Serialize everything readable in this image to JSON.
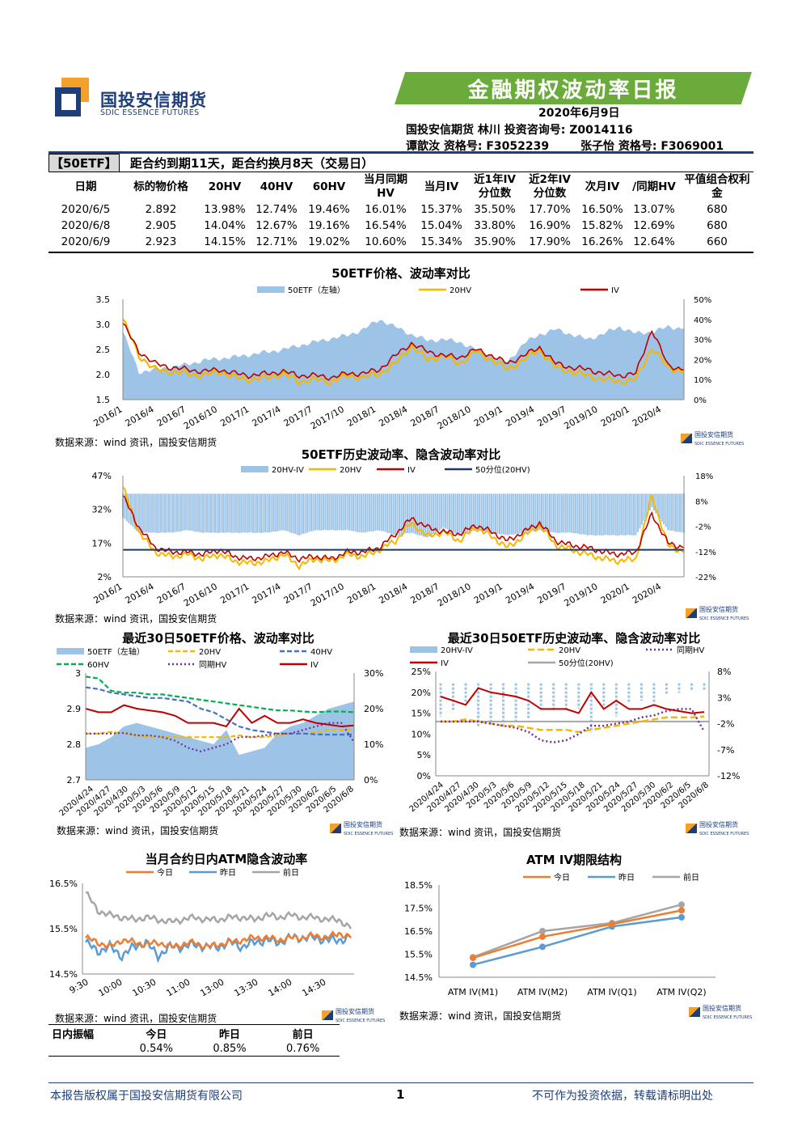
{
  "header": {
    "company_cn": "国投安信期货",
    "company_en": "SDIC ESSENCE FUTURES",
    "report_title": "金融期权波动率日报",
    "date": "2020年6月9日",
    "analyst_line1": "国投安信期货 林川 投资咨询号: Z0014116",
    "analyst_line2a": "谭歆汝 资格号: F3052239",
    "analyst_line2b": "张子怡 资格号: F3069001",
    "brand_blue": "#1c3f7a",
    "brand_green": "#6aab3b",
    "brand_orange": "#f3a12a"
  },
  "summary": {
    "tag": "【50ETF】",
    "note": "距合约到期11天，距合约换月8天（交易日）",
    "columns": [
      "日期",
      "标的物价格",
      "20HV",
      "40HV",
      "60HV",
      "当月同期HV",
      "当月IV",
      "近1年IV分位数",
      "近2年IV分位数",
      "次月IV",
      "/同期HV",
      "平值组合权利金"
    ],
    "rows": [
      [
        "2020/6/5",
        "2.892",
        "13.98%",
        "12.74%",
        "19.46%",
        "16.01%",
        "15.37%",
        "35.50%",
        "17.70%",
        "16.50%",
        "13.07%",
        "680"
      ],
      [
        "2020/6/8",
        "2.905",
        "14.04%",
        "12.67%",
        "19.16%",
        "16.54%",
        "15.04%",
        "33.80%",
        "16.90%",
        "15.82%",
        "12.69%",
        "680"
      ],
      [
        "2020/6/9",
        "2.923",
        "14.15%",
        "12.71%",
        "19.02%",
        "10.60%",
        "15.34%",
        "35.90%",
        "17.90%",
        "16.26%",
        "12.64%",
        "660"
      ]
    ]
  },
  "source_text": "数据来源：wind 资讯，国投安信期货",
  "mini_logo_cn": "国投安信期货",
  "mini_logo_en": "SDIC ESSENCE FUTURES",
  "chart_data": [
    {
      "id": "c1",
      "type": "area+line",
      "title": "50ETF价格、波动率对比",
      "legend": [
        "50ETF（左轴）",
        "20HV",
        "IV"
      ],
      "colors": [
        "#9dc3e6",
        "#f5b800",
        "#c00000"
      ],
      "x_ticks": [
        "2016/1",
        "2016/4",
        "2016/7",
        "2016/10",
        "2017/1",
        "2017/4",
        "2017/7",
        "2017/10",
        "2018/1",
        "2018/4",
        "2018/7",
        "2018/10",
        "2019/1",
        "2019/4",
        "2019/7",
        "2019/10",
        "2020/1",
        "2020/4"
      ],
      "y_left_ticks": [
        "3.5",
        "3.0",
        "2.5",
        "2.0",
        "1.5"
      ],
      "y_left_range": [
        1.5,
        3.5
      ],
      "y_right_ticks": [
        "50%",
        "40%",
        "30%",
        "20%",
        "10%",
        "0%"
      ],
      "y_right_range": [
        0,
        50
      ],
      "price": [
        2.85,
        2.05,
        2.1,
        2.15,
        2.2,
        2.28,
        2.32,
        2.35,
        2.4,
        2.45,
        2.5,
        2.58,
        2.65,
        2.72,
        2.78,
        2.9,
        3.1,
        2.95,
        2.8,
        2.68,
        2.7,
        2.65,
        2.5,
        2.38,
        2.25,
        2.62,
        2.8,
        2.9,
        2.8,
        2.7,
        2.82,
        2.95,
        2.82,
        2.85,
        2.95,
        2.92
      ],
      "hv20": [
        40,
        22,
        15,
        14,
        13,
        12,
        14,
        11,
        10,
        11,
        13,
        9,
        10,
        9,
        12,
        11,
        13,
        18,
        27,
        20,
        22,
        18,
        24,
        20,
        15,
        20,
        25,
        16,
        14,
        12,
        10,
        9,
        10,
        26,
        16,
        14
      ],
      "iv": [
        38,
        24,
        18,
        16,
        15,
        14,
        15,
        13,
        12,
        13,
        14,
        12,
        12,
        11,
        13,
        13,
        15,
        22,
        28,
        24,
        22,
        21,
        25,
        22,
        18,
        22,
        26,
        18,
        16,
        15,
        13,
        12,
        13,
        35,
        17,
        15
      ]
    },
    {
      "id": "c2",
      "type": "bar+line",
      "title": "50ETF历史波动率、隐含波动率对比",
      "legend": [
        "20HV-IV",
        "20HV",
        "IV",
        "50分位(20HV)"
      ],
      "colors": [
        "#9dc3e6",
        "#f5b800",
        "#c00000",
        "#1f3864"
      ],
      "x_ticks": [
        "2016/1",
        "2016/4",
        "2016/7",
        "2016/10",
        "2017/1",
        "2017/4",
        "2017/7",
        "2017/10",
        "2018/1",
        "2018/4",
        "2018/7",
        "2018/10",
        "2019/1",
        "2019/4",
        "2019/7",
        "2019/10",
        "2020/1",
        "2020/4"
      ],
      "y_left_ticks": [
        "47%",
        "32%",
        "17%",
        "2%"
      ],
      "y_left_range": [
        2,
        47
      ],
      "y_right_ticks": [
        "18%",
        "8%",
        "-2%",
        "-12%",
        "-22%"
      ],
      "y_right_range": [
        -22,
        18
      ],
      "median_20hv": 14,
      "hv20": [
        42,
        22,
        13,
        11,
        12,
        10,
        12,
        9,
        8,
        9,
        12,
        7,
        10,
        9,
        12,
        11,
        14,
        18,
        26,
        20,
        22,
        18,
        24,
        20,
        15,
        20,
        25,
        16,
        14,
        12,
        10,
        9,
        10,
        38,
        16,
        13
      ],
      "iv": [
        38,
        24,
        15,
        13,
        13,
        12,
        14,
        11,
        10,
        11,
        13,
        10,
        11,
        10,
        13,
        13,
        15,
        21,
        28,
        24,
        22,
        21,
        25,
        22,
        18,
        22,
        26,
        18,
        16,
        15,
        13,
        12,
        13,
        30,
        17,
        15
      ]
    },
    {
      "id": "c3",
      "type": "area+line",
      "title": "最近30日50ETF价格、波动率对比",
      "legend": [
        "50ETF（左轴）",
        "20HV",
        "40HV",
        "60HV",
        "同期HV",
        "IV"
      ],
      "colors": [
        "#9dc3e6",
        "#f5b800",
        "#4472c4",
        "#00b050",
        "#7030a0",
        "#c00000"
      ],
      "x_ticks": [
        "2020/4/24",
        "2020/4/27",
        "2020/4/30",
        "2020/5/3",
        "2020/5/6",
        "2020/5/9",
        "2020/5/12",
        "2020/5/15",
        "2020/5/18",
        "2020/5/21",
        "2020/5/24",
        "2020/5/27",
        "2020/5/30",
        "2020/6/2",
        "2020/6/5",
        "2020/6/8"
      ],
      "y_left_ticks": [
        "3",
        "2.9",
        "2.8",
        "2.7"
      ],
      "y_left_range": [
        2.7,
        3.0
      ],
      "y_right_ticks": [
        "30%",
        "20%",
        "10%",
        "0%"
      ],
      "y_right_range": [
        0,
        30
      ],
      "price": [
        2.79,
        2.8,
        2.82,
        2.85,
        2.86,
        2.85,
        2.84,
        2.83,
        2.82,
        2.81,
        2.8,
        2.84,
        2.77,
        2.78,
        2.79,
        2.83,
        2.85,
        2.86,
        2.88,
        2.9,
        2.91,
        2.92
      ],
      "hv20": [
        13,
        13,
        13.5,
        13,
        12.5,
        12,
        12,
        12,
        12,
        12,
        12,
        12,
        12.5,
        12,
        12,
        12.5,
        13,
        13,
        13.5,
        14,
        14,
        14.2
      ],
      "hv40": [
        26,
        25.5,
        24.5,
        24,
        23.5,
        23,
        23,
        22.5,
        22,
        20,
        19,
        17,
        15,
        14,
        13.5,
        13,
        13,
        13,
        12.8,
        12.7,
        12.7,
        12.7
      ],
      "hv60": [
        29,
        28.5,
        25,
        24.5,
        24.5,
        24,
        24,
        23.5,
        23,
        22.5,
        22,
        21.5,
        21,
        20.5,
        20,
        19.5,
        19.5,
        19.2,
        19,
        19.2,
        19.2,
        19
      ],
      "hv_same": [
        13,
        13,
        13,
        13.2,
        12.5,
        12.5,
        12,
        11,
        9,
        8,
        9,
        10,
        12,
        12,
        12.5,
        13,
        13,
        14,
        15,
        16,
        16,
        10.6
      ],
      "iv": [
        20,
        19,
        19,
        21,
        20,
        19.5,
        19,
        18,
        16,
        16,
        16,
        15,
        20,
        16,
        18,
        16,
        16,
        17,
        16,
        15.5,
        15,
        15.3
      ]
    },
    {
      "id": "c4",
      "type": "bar+line",
      "title": "最近30日50ETF历史波动率、隐含波动率对比",
      "legend": [
        "20HV-IV",
        "20HV",
        "同期HV",
        "IV",
        "50分位(20HV)"
      ],
      "colors": [
        "#9dc3e6",
        "#f5b800",
        "#7030a0",
        "#c00000",
        "#a6a6a6"
      ],
      "x_ticks": [
        "2020/4/24",
        "2020/4/27",
        "2020/4/30",
        "2020/5/3",
        "2020/5/6",
        "2020/5/9",
        "2020/5/12",
        "2020/5/15",
        "2020/5/18",
        "2020/5/21",
        "2020/5/24",
        "2020/5/27",
        "2020/5/30",
        "2020/6/2",
        "2020/6/5",
        "2020/6/8"
      ],
      "y_left_ticks": [
        "25%",
        "20%",
        "15%",
        "10%",
        "5%",
        "0%"
      ],
      "y_left_range": [
        0,
        25
      ],
      "y_right_ticks": [
        "8%",
        "3%",
        "-2%",
        "-7%",
        "-12%"
      ],
      "y_right_range": [
        -12,
        8
      ],
      "median_20hv": 13,
      "hv20": [
        13,
        13,
        13.5,
        13,
        12.5,
        12,
        12,
        11.5,
        11,
        11,
        11,
        10.5,
        11,
        11.5,
        12,
        12.5,
        13,
        13.5,
        14,
        14,
        14,
        14.2
      ],
      "hv_same": [
        13,
        13,
        13,
        13,
        12.5,
        12,
        11.5,
        10.5,
        8.5,
        8,
        8.5,
        10,
        12,
        12,
        12.5,
        13,
        14,
        14.5,
        15.5,
        16,
        16,
        10.6
      ],
      "iv": [
        19,
        18,
        17,
        21,
        20,
        19.5,
        19,
        18,
        16,
        16,
        16,
        15,
        20,
        16,
        18,
        16,
        16,
        17,
        16,
        15.5,
        15,
        15.3
      ],
      "diff": [
        -6,
        -5,
        -3.5,
        -8,
        -7.5,
        -7.5,
        -7,
        -6.5,
        -5,
        -5,
        -5,
        -4.5,
        -9,
        -4.5,
        -6,
        -3.5,
        -3,
        -3.5,
        -2,
        -1.5,
        -1,
        -1.1
      ]
    },
    {
      "id": "c5",
      "type": "line",
      "title": "当月合约日内ATM隐含波动率",
      "legend": [
        "今日",
        "昨日",
        "前日"
      ],
      "colors": [
        "#ed7d31",
        "#5b9bd5",
        "#a5a5a5"
      ],
      "x_ticks": [
        "9:30",
        "10:00",
        "10:30",
        "11:00",
        "13:00",
        "13:30",
        "14:00",
        "14:30"
      ],
      "y_ticks": [
        "16.5%",
        "15.5%",
        "14.5%"
      ],
      "y_range": [
        14.5,
        16.5
      ],
      "today": [
        15.3,
        15.2,
        15.1,
        15.25,
        15.2,
        15.15,
        15.2,
        15.1,
        15.15,
        15.2,
        15.1,
        15.15,
        15.2,
        15.25,
        15.3,
        15.3,
        15.25,
        15.3,
        15.3,
        15.35,
        15.3,
        15.4,
        15.3
      ],
      "yesterday": [
        15.2,
        15.0,
        15.1,
        14.9,
        15.1,
        15.2,
        14.9,
        15.1,
        15.1,
        15.15,
        15.1,
        15.1,
        15.2,
        15.1,
        15.2,
        15.25,
        15.2,
        15.3,
        15.3,
        15.3,
        15.25,
        15.25,
        15.3
      ],
      "daybefore": [
        16.3,
        15.9,
        15.8,
        15.75,
        15.7,
        15.75,
        15.7,
        15.65,
        15.7,
        15.75,
        15.7,
        15.7,
        15.75,
        15.75,
        15.7,
        15.8,
        15.75,
        15.8,
        15.75,
        15.75,
        15.7,
        15.7,
        15.5
      ]
    },
    {
      "id": "c6",
      "type": "line",
      "title": "ATM IV期限结构",
      "legend": [
        "今日",
        "昨日",
        "前日"
      ],
      "colors": [
        "#ed7d31",
        "#5b9bd5",
        "#a5a5a5"
      ],
      "categories": [
        "ATM IV(M1)",
        "ATM IV(M2)",
        "ATM IV(Q1)",
        "ATM IV(Q2)"
      ],
      "y_ticks": [
        "18.5%",
        "17.5%",
        "16.5%",
        "15.5%",
        "14.5%"
      ],
      "y_range": [
        14.5,
        18.5
      ],
      "today": [
        15.34,
        16.26,
        16.8,
        17.4
      ],
      "yesterday": [
        15.04,
        15.82,
        16.7,
        17.1
      ],
      "daybefore": [
        15.37,
        16.5,
        16.85,
        17.65
      ]
    }
  ],
  "amplitude": {
    "label": "日内振幅",
    "columns": [
      "今日",
      "昨日",
      "前日"
    ],
    "values": [
      "0.54%",
      "0.85%",
      "0.76%"
    ]
  },
  "footer": {
    "left": "本报告版权属于国投安信期货有限公司",
    "page": "1",
    "right": "不可作为投资依据，转载请标明出处"
  }
}
